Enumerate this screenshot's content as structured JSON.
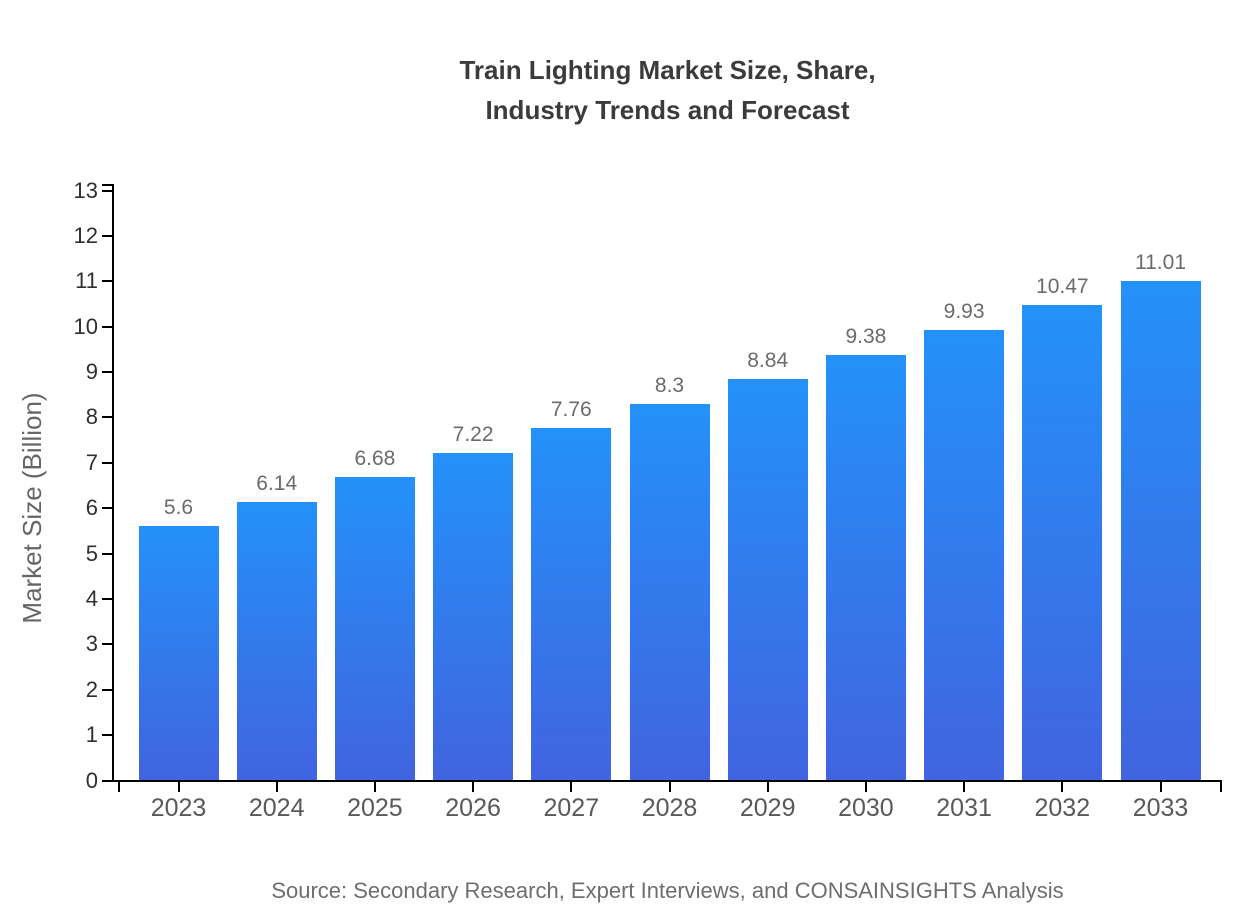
{
  "header": {
    "title_line1": "Train Lighting Market Size, Share,",
    "title_line2": "Industry Trends and Forecast"
  },
  "footer": {
    "source": "Source: Secondary Research, Expert Interviews, and CONSAINSIGHTS Analysis"
  },
  "chart_data": {
    "type": "bar",
    "title": "Train Lighting Market Size, Share, Industry Trends and Forecast",
    "xlabel": "",
    "ylabel": "Market Size (Billion)",
    "categories": [
      "2023",
      "2024",
      "2025",
      "2026",
      "2027",
      "2028",
      "2029",
      "2030",
      "2031",
      "2032",
      "2033"
    ],
    "values": [
      5.6,
      6.14,
      6.68,
      7.22,
      7.76,
      8.3,
      8.84,
      9.38,
      9.93,
      10.47,
      11.01
    ],
    "value_labels": [
      "5.6",
      "6.14",
      "6.68",
      "7.22",
      "7.76",
      "8.3",
      "8.84",
      "9.38",
      "9.93",
      "10.47",
      "11.01"
    ],
    "ylim": [
      0,
      13
    ],
    "y_ticks": [
      0,
      1,
      2,
      3,
      4,
      5,
      6,
      7,
      8,
      9,
      10,
      11,
      12,
      13
    ],
    "grid": false,
    "legend": "none",
    "colors": {
      "bar_gradient_top": "#2491f9",
      "bar_gradient_bottom": "#4164e0",
      "axis": "#000000",
      "title_text": "#3b3b3b",
      "y_tick_text": "#2f2f2f",
      "x_tick_text": "#595959",
      "value_label_text": "#6b6b6b",
      "source_text": "#6e6e6e",
      "background": "#ffffff"
    }
  }
}
